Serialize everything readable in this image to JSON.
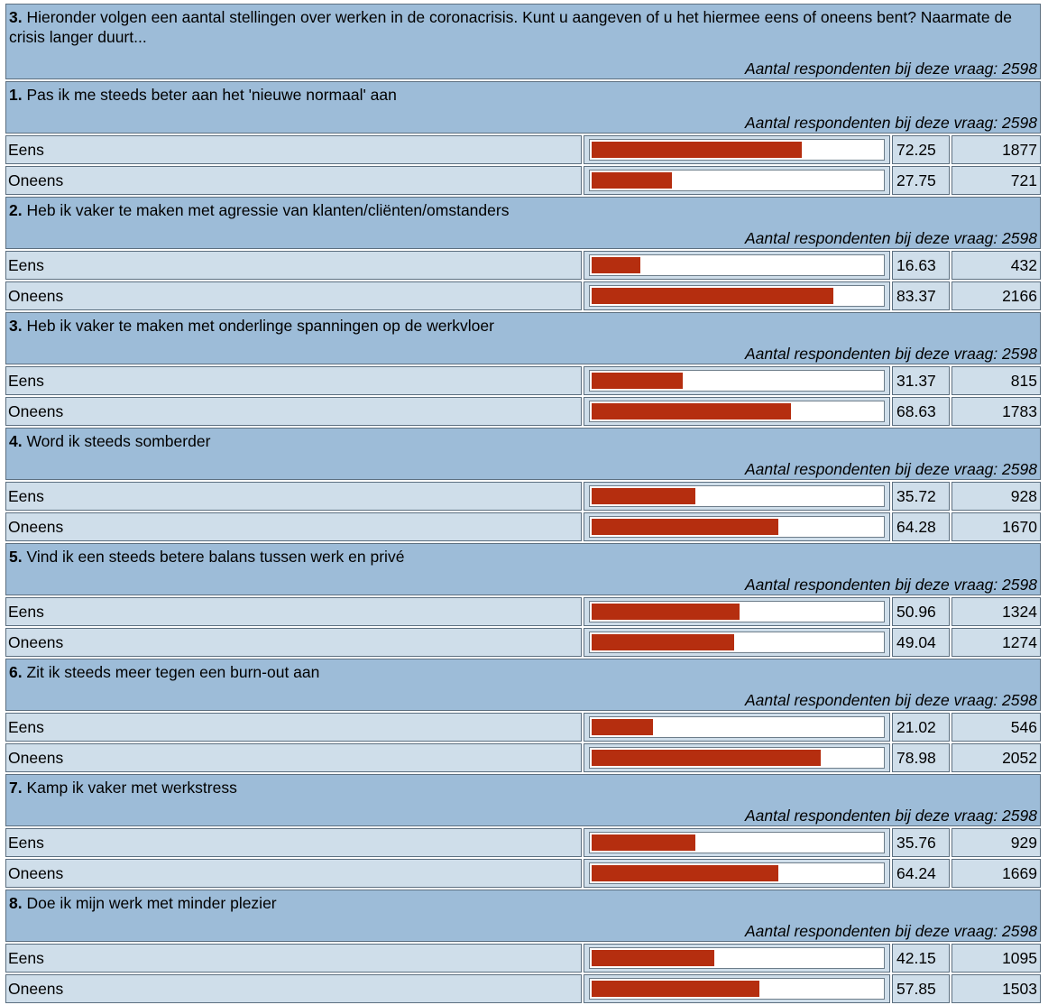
{
  "header": {
    "number": "3.",
    "text": " Hieronder volgen een aantal stellingen over werken in de coronacrisis. Kunt u aangeven of u het hiermee eens of oneens bent? Naarmate de crisis langer duurt...",
    "respondents": "Aantal respondenten bij deze vraag: 2598"
  },
  "questions": [
    {
      "number": "1.",
      "text": " Pas ik me steeds beter aan het 'nieuwe normaal' aan",
      "respondents": "Aantal respondenten bij deze vraag: 2598",
      "rows": [
        {
          "label": "Eens",
          "pct": "72.25",
          "count": "1877"
        },
        {
          "label": "Oneens",
          "pct": "27.75",
          "count": "721"
        }
      ]
    },
    {
      "number": "2.",
      "text": " Heb ik vaker te maken met agressie van klanten/cliënten/omstanders",
      "respondents": "Aantal respondenten bij deze vraag: 2598",
      "rows": [
        {
          "label": "Eens",
          "pct": "16.63",
          "count": "432"
        },
        {
          "label": "Oneens",
          "pct": "83.37",
          "count": "2166"
        }
      ]
    },
    {
      "number": "3.",
      "text": " Heb ik vaker te maken met onderlinge spanningen op de werkvloer",
      "respondents": "Aantal respondenten bij deze vraag: 2598",
      "rows": [
        {
          "label": "Eens",
          "pct": "31.37",
          "count": "815"
        },
        {
          "label": "Oneens",
          "pct": "68.63",
          "count": "1783"
        }
      ]
    },
    {
      "number": "4.",
      "text": " Word ik steeds somberder",
      "respondents": "Aantal respondenten bij deze vraag: 2598",
      "rows": [
        {
          "label": "Eens",
          "pct": "35.72",
          "count": "928"
        },
        {
          "label": "Oneens",
          "pct": "64.28",
          "count": "1670"
        }
      ]
    },
    {
      "number": "5.",
      "text": " Vind ik een steeds betere balans tussen werk en privé",
      "respondents": "Aantal respondenten bij deze vraag: 2598",
      "rows": [
        {
          "label": "Eens",
          "pct": "50.96",
          "count": "1324"
        },
        {
          "label": "Oneens",
          "pct": "49.04",
          "count": "1274"
        }
      ]
    },
    {
      "number": "6.",
      "text": " Zit ik steeds meer tegen een burn-out aan",
      "respondents": "Aantal respondenten bij deze vraag: 2598",
      "rows": [
        {
          "label": "Eens",
          "pct": "21.02",
          "count": "546"
        },
        {
          "label": "Oneens",
          "pct": "78.98",
          "count": "2052"
        }
      ]
    },
    {
      "number": "7.",
      "text": " Kamp ik vaker met werkstress",
      "respondents": "Aantal respondenten bij deze vraag: 2598",
      "rows": [
        {
          "label": "Eens",
          "pct": "35.76",
          "count": "929"
        },
        {
          "label": "Oneens",
          "pct": "64.24",
          "count": "1669"
        }
      ]
    },
    {
      "number": "8.",
      "text": " Doe ik mijn werk met minder plezier",
      "respondents": "Aantal respondenten bij deze vraag: 2598",
      "rows": [
        {
          "label": "Eens",
          "pct": "42.15",
          "count": "1095"
        },
        {
          "label": "Oneens",
          "pct": "57.85",
          "count": "1503"
        }
      ]
    }
  ],
  "colors": {
    "header_bg": "#9dbcd8",
    "row_bg": "#cfdeea",
    "bar": "#b52e0f"
  }
}
